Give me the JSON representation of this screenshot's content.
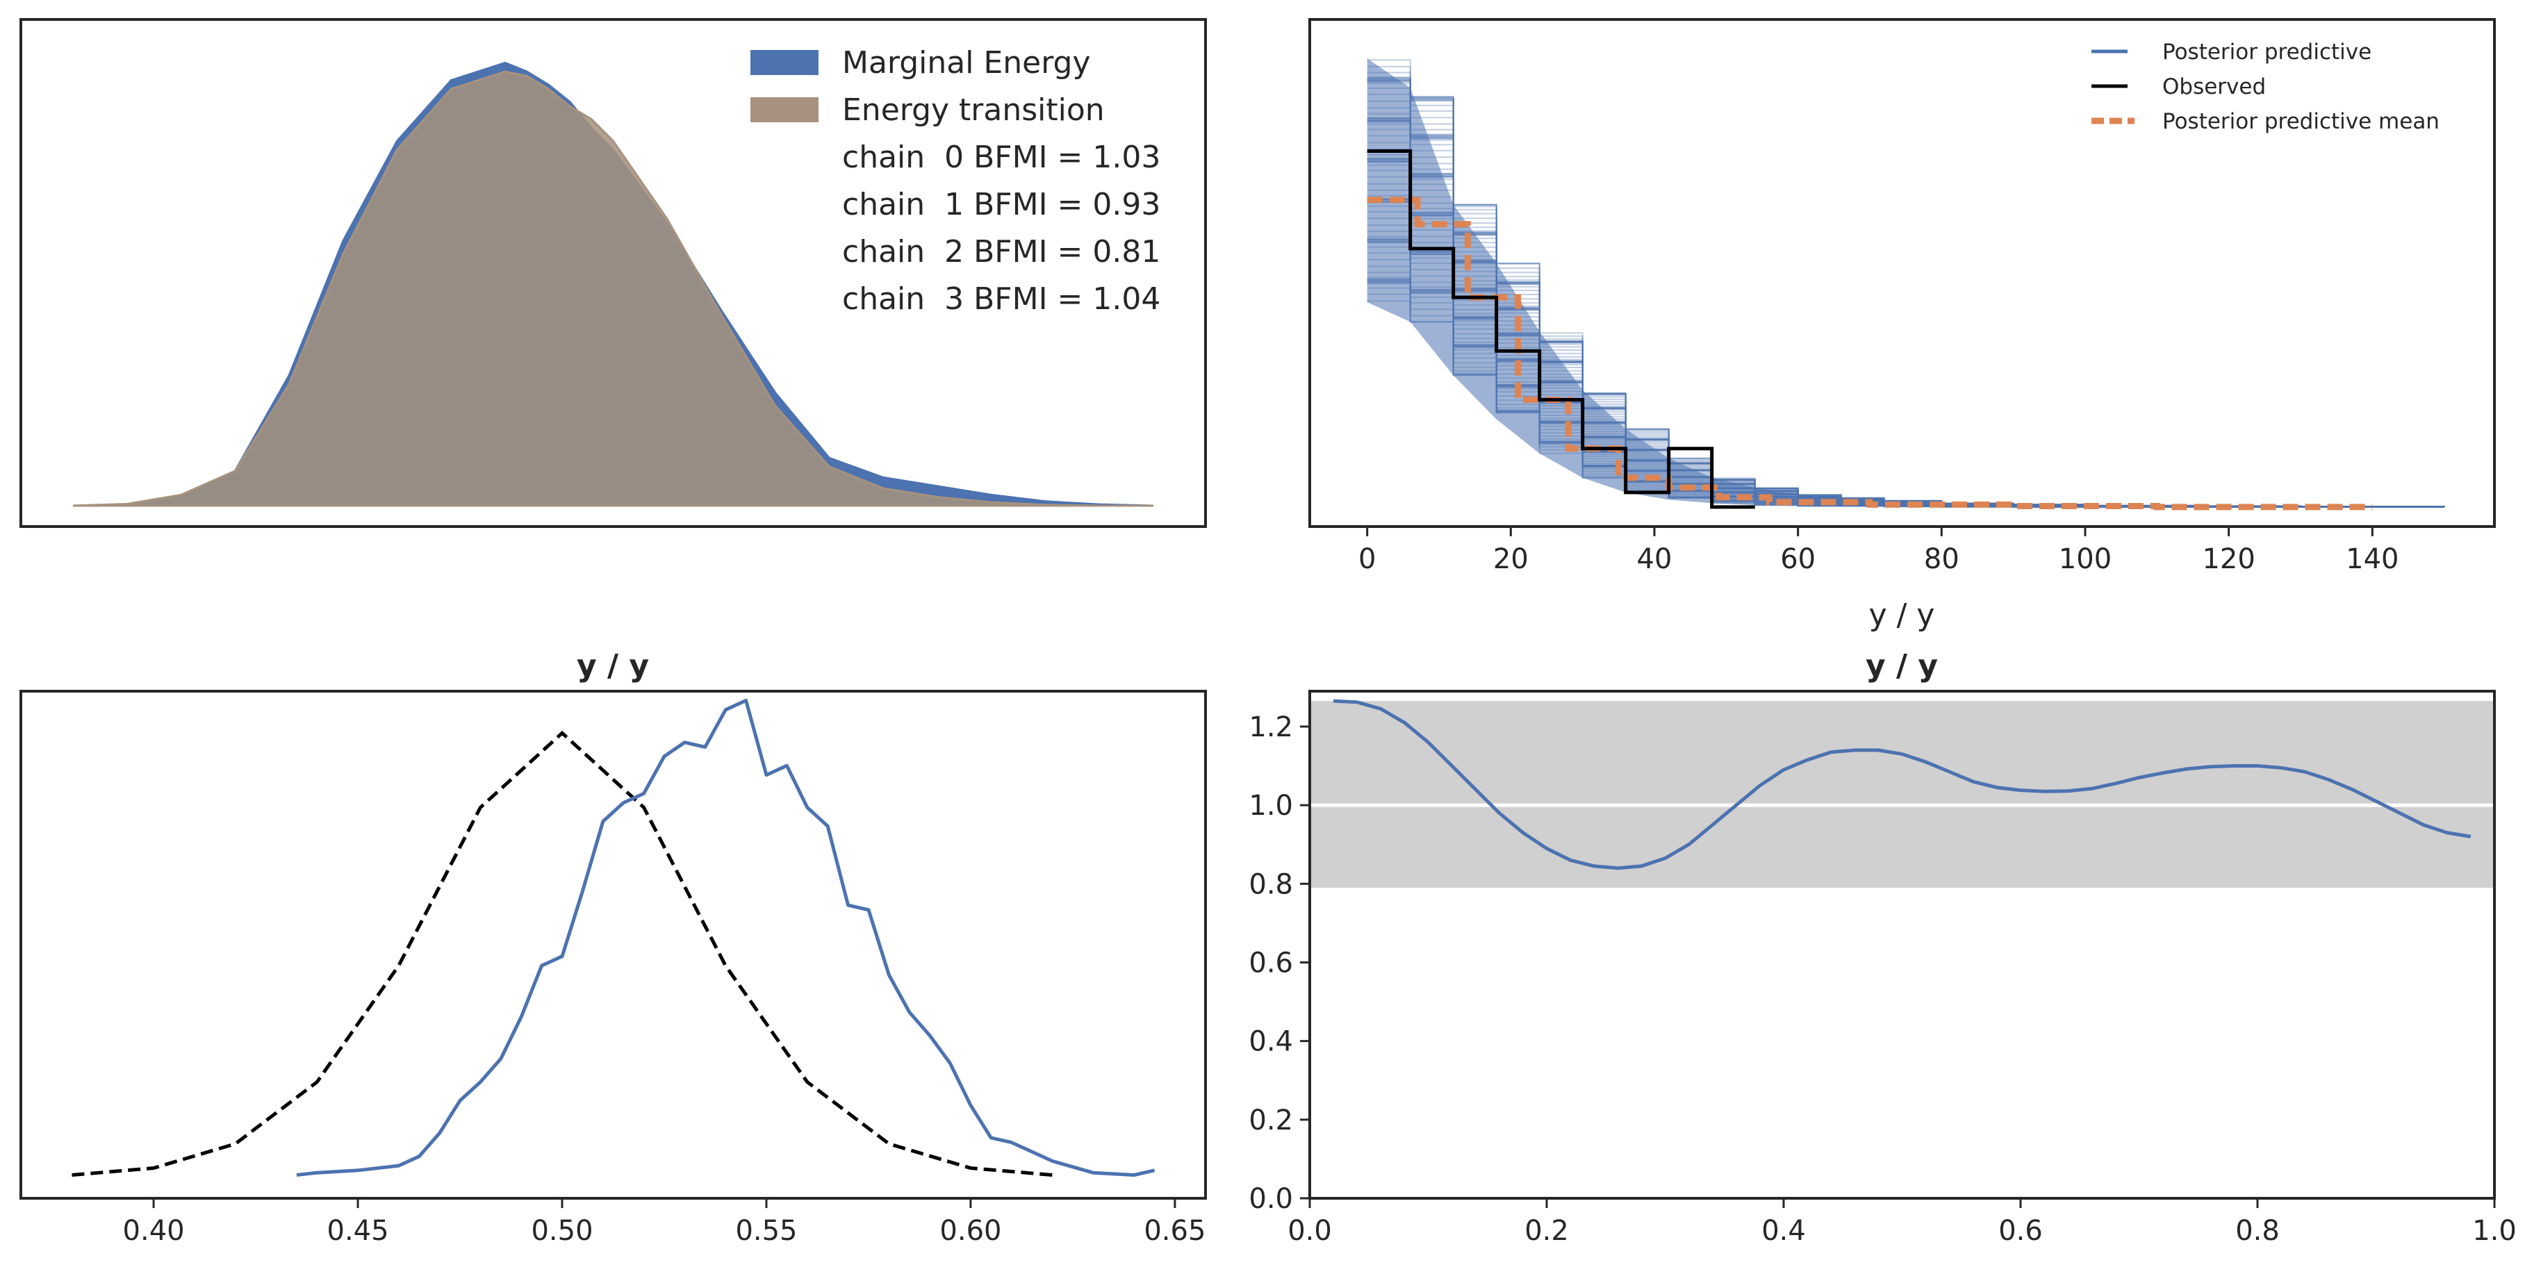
{
  "chart_data": [
    {
      "type": "area",
      "panel": "energy",
      "title": "",
      "xlabel": "",
      "ylabel": "",
      "grid": false,
      "ticks_shown": false,
      "legend_placement": "top-right",
      "legend": [
        "Marginal Energy",
        "Energy transition"
      ],
      "annotations": [
        "chain  0 BFMI = 1.03",
        "chain  1 BFMI = 0.93",
        "chain  2 BFMI = 0.81",
        "chain  3 BFMI = 1.04"
      ],
      "xlim": [
        0,
        1
      ],
      "ylim": [
        0,
        1.12
      ],
      "series": [
        {
          "name": "Marginal Energy",
          "color": "#4c72b0",
          "x": [
            0.0,
            0.05,
            0.1,
            0.15,
            0.2,
            0.25,
            0.3,
            0.35,
            0.4,
            0.42,
            0.44,
            0.46,
            0.48,
            0.5,
            0.55,
            0.6,
            0.65,
            0.7,
            0.75,
            0.8,
            0.85,
            0.9,
            0.95,
            1.0
          ],
          "y": [
            0.0,
            0.003,
            0.02,
            0.08,
            0.3,
            0.61,
            0.84,
            0.98,
            1.02,
            1.0,
            0.97,
            0.93,
            0.87,
            0.82,
            0.65,
            0.45,
            0.26,
            0.11,
            0.065,
            0.045,
            0.025,
            0.01,
            0.003,
            0.0
          ]
        },
        {
          "name": "Energy transition",
          "color": "#a6927e",
          "x": [
            0.0,
            0.05,
            0.1,
            0.15,
            0.2,
            0.25,
            0.3,
            0.35,
            0.4,
            0.42,
            0.44,
            0.46,
            0.48,
            0.5,
            0.55,
            0.6,
            0.65,
            0.7,
            0.75,
            0.8,
            0.85,
            0.9,
            0.95,
            1.0
          ],
          "y": [
            0.0,
            0.004,
            0.025,
            0.08,
            0.28,
            0.58,
            0.82,
            0.96,
            1.0,
            0.99,
            0.96,
            0.92,
            0.89,
            0.84,
            0.66,
            0.44,
            0.23,
            0.09,
            0.04,
            0.02,
            0.008,
            0.002,
            0.0,
            0.0
          ]
        }
      ]
    },
    {
      "type": "line",
      "panel": "ppc-cumulative",
      "title": "",
      "xlabel": "y / y",
      "ylabel": "",
      "grid": false,
      "xlim": [
        -8,
        157
      ],
      "ylim": [
        -0.04,
        1.0
      ],
      "xticks": [
        0,
        20,
        40,
        60,
        80,
        100,
        120,
        140
      ],
      "legend_placement": "top-right",
      "legend": [
        "Posterior predictive",
        "Observed",
        "Posterior predictive mean"
      ],
      "series": [
        {
          "name": "Posterior predictive",
          "color": "#4c72b0",
          "band_x": [
            0,
            6,
            12,
            18,
            24,
            30,
            36,
            42,
            48,
            54,
            60,
            70,
            80,
            100,
            150
          ],
          "band_upper": [
            0.92,
            0.86,
            0.62,
            0.5,
            0.36,
            0.24,
            0.16,
            0.1,
            0.06,
            0.04,
            0.025,
            0.015,
            0.008,
            0.003,
            0.0
          ],
          "band_lower": [
            0.42,
            0.38,
            0.27,
            0.18,
            0.11,
            0.06,
            0.03,
            0.015,
            0.008,
            0.004,
            0.002,
            0.001,
            0.0,
            0.0,
            0.0
          ]
        },
        {
          "name": "Observed",
          "color": "#000000",
          "x": [
            0,
            6,
            12,
            18,
            24,
            30,
            36,
            42,
            48,
            54
          ],
          "y": [
            0.73,
            0.53,
            0.43,
            0.32,
            0.22,
            0.12,
            0.03,
            0.12,
            0.0,
            0.0
          ]
        },
        {
          "name": "Posterior predictive mean",
          "color": "#dd8452",
          "x": [
            0,
            7,
            14,
            21,
            28,
            35,
            42,
            49,
            56,
            70,
            90,
            110,
            140
          ],
          "y": [
            0.63,
            0.58,
            0.43,
            0.22,
            0.12,
            0.06,
            0.04,
            0.02,
            0.01,
            0.005,
            0.002,
            0.0,
            0.0
          ]
        }
      ]
    },
    {
      "type": "line",
      "panel": "ppc-kde",
      "title": "y / y",
      "xlabel": "",
      "ylabel": "",
      "grid": false,
      "xlim": [
        0.3675,
        0.6575
      ],
      "ylim": [
        -0.05,
        1.04
      ],
      "xticks": [
        0.4,
        0.45,
        0.5,
        0.55,
        0.6,
        0.65
      ],
      "xtick_labels": [
        "0.40",
        "0.45",
        "0.50",
        "0.55",
        "0.60",
        "0.65"
      ],
      "series": [
        {
          "color": "#4c72b0",
          "style": "solid",
          "x": [
            0.435,
            0.44,
            0.45,
            0.46,
            0.465,
            0.47,
            0.475,
            0.48,
            0.485,
            0.49,
            0.495,
            0.5,
            0.505,
            0.51,
            0.515,
            0.52,
            0.525,
            0.53,
            0.535,
            0.54,
            0.545,
            0.55,
            0.555,
            0.56,
            0.565,
            0.57,
            0.575,
            0.58,
            0.585,
            0.59,
            0.595,
            0.6,
            0.605,
            0.61,
            0.62,
            0.63,
            0.64,
            0.645
          ],
          "y": [
            0.0,
            0.005,
            0.01,
            0.02,
            0.04,
            0.09,
            0.16,
            0.2,
            0.25,
            0.34,
            0.45,
            0.47,
            0.61,
            0.76,
            0.8,
            0.82,
            0.9,
            0.93,
            0.92,
            1.0,
            1.02,
            0.86,
            0.88,
            0.79,
            0.75,
            0.58,
            0.57,
            0.43,
            0.35,
            0.3,
            0.24,
            0.15,
            0.08,
            0.07,
            0.03,
            0.005,
            0.0,
            0.01
          ]
        },
        {
          "color": "#000000",
          "style": "dashed",
          "x": [
            0.38,
            0.4,
            0.42,
            0.44,
            0.46,
            0.48,
            0.5,
            0.52,
            0.54,
            0.56,
            0.58,
            0.6,
            0.62
          ],
          "y": [
            0.0,
            0.015,
            0.067,
            0.2,
            0.45,
            0.79,
            0.95,
            0.79,
            0.45,
            0.2,
            0.067,
            0.015,
            0.0
          ]
        }
      ]
    },
    {
      "type": "line",
      "panel": "bpv-u-value",
      "title": "y / y",
      "xlabel": "",
      "ylabel": "",
      "grid": false,
      "xlim": [
        0,
        1
      ],
      "ylim": [
        0,
        1.29
      ],
      "xticks": [
        0.0,
        0.2,
        0.4,
        0.6,
        0.8,
        1.0
      ],
      "xtick_labels": [
        "0.0",
        "0.2",
        "0.4",
        "0.6",
        "0.8",
        "1.0"
      ],
      "yticks": [
        0.0,
        0.2,
        0.4,
        0.6,
        0.8,
        1.0,
        1.2
      ],
      "ytick_labels": [
        "0.0",
        "0.2",
        "0.4",
        "0.6",
        "0.8",
        "1.0",
        "1.2"
      ],
      "band": [
        0.79,
        1.265
      ],
      "band_color": "#d0d0d0",
      "reference_line": 1.0,
      "series": [
        {
          "color": "#4c72b0",
          "x": [
            0.02,
            0.04,
            0.06,
            0.08,
            0.1,
            0.12,
            0.14,
            0.16,
            0.18,
            0.2,
            0.22,
            0.24,
            0.26,
            0.28,
            0.3,
            0.32,
            0.34,
            0.36,
            0.38,
            0.4,
            0.42,
            0.44,
            0.46,
            0.48,
            0.5,
            0.52,
            0.54,
            0.56,
            0.58,
            0.6,
            0.62,
            0.64,
            0.66,
            0.68,
            0.7,
            0.72,
            0.74,
            0.76,
            0.78,
            0.8,
            0.82,
            0.84,
            0.86,
            0.88,
            0.9,
            0.92,
            0.94,
            0.96,
            0.98
          ],
          "y": [
            1.265,
            1.262,
            1.245,
            1.21,
            1.16,
            1.1,
            1.04,
            0.98,
            0.93,
            0.89,
            0.86,
            0.845,
            0.84,
            0.845,
            0.865,
            0.9,
            0.95,
            1.0,
            1.05,
            1.09,
            1.115,
            1.135,
            1.14,
            1.14,
            1.13,
            1.11,
            1.085,
            1.06,
            1.045,
            1.038,
            1.035,
            1.036,
            1.042,
            1.055,
            1.07,
            1.082,
            1.092,
            1.098,
            1.1,
            1.1,
            1.095,
            1.085,
            1.065,
            1.04,
            1.01,
            0.98,
            0.95,
            0.93,
            0.92
          ]
        }
      ]
    }
  ]
}
